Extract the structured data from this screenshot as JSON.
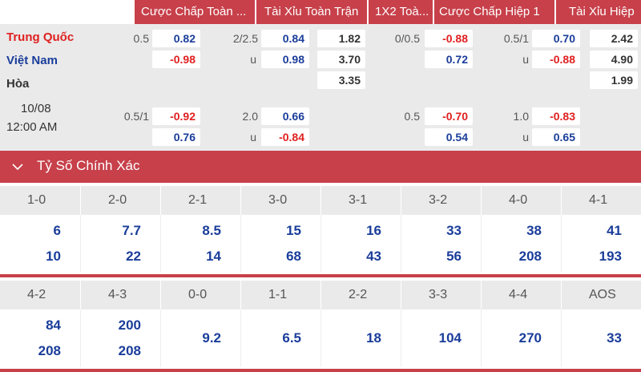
{
  "odds_header": {
    "col1": "Cược Chấp Toàn ...",
    "col2": "Tài Xỉu Toàn Trận",
    "col3": "1X2 Toà...",
    "col4": "Cược Chấp Hiệp 1",
    "col5": "Tài Xỉu Hiệp"
  },
  "teams": {
    "home": "Trung Quốc",
    "away": "Việt Nam",
    "draw": "Hòa"
  },
  "match_time": {
    "date": "10/08",
    "time": "12:00 AM"
  },
  "row1": {
    "hdp_line": "0.5",
    "hdp_home": "0.82",
    "hdp_away": "-0.98",
    "ou_line": "2/2.5",
    "ou_over": "0.84",
    "ou_under_label": "u",
    "ou_under": "0.98",
    "x12_home": "1.82",
    "x12_away": "3.70",
    "x12_draw": "3.35",
    "h1_hdp_line": "0/0.5",
    "h1_hdp_home": "-0.88",
    "h1_hdp_away": "0.72",
    "h1_ou_line": "0.5/1",
    "h1_ou_over": "0.70",
    "h1_ou_under_label": "u",
    "h1_ou_under": "-0.88",
    "h1_x12_home": "2.42",
    "h1_x12_away": "4.90",
    "h1_x12_draw": "1.99"
  },
  "row2": {
    "hdp_line": "0.5/1",
    "hdp_home": "-0.92",
    "hdp_away": "0.76",
    "ou_line": "2.0",
    "ou_over": "0.66",
    "ou_under_label": "u",
    "ou_under": "-0.84",
    "h1_hdp_line": "0.5",
    "h1_hdp_home": "-0.70",
    "h1_hdp_away": "0.54",
    "h1_ou_line": "1.0",
    "h1_ou_over": "-0.83",
    "h1_ou_under_label": "u",
    "h1_ou_under": "0.65"
  },
  "correct_score": {
    "title": "Tỷ Số Chính Xác",
    "group1": [
      {
        "score": "1-0",
        "home": "6",
        "away": "10"
      },
      {
        "score": "2-0",
        "home": "7.7",
        "away": "22"
      },
      {
        "score": "2-1",
        "home": "8.5",
        "away": "14"
      },
      {
        "score": "3-0",
        "home": "15",
        "away": "68"
      },
      {
        "score": "3-1",
        "home": "16",
        "away": "43"
      },
      {
        "score": "3-2",
        "home": "33",
        "away": "56"
      },
      {
        "score": "4-0",
        "home": "38",
        "away": "208"
      },
      {
        "score": "4-1",
        "home": "41",
        "away": "193"
      }
    ],
    "group2": [
      {
        "score": "4-2",
        "home": "84",
        "away": "208"
      },
      {
        "score": "4-3",
        "home": "200",
        "away": "208"
      },
      {
        "score": "0-0",
        "single": "9.2"
      },
      {
        "score": "1-1",
        "single": "6.5"
      },
      {
        "score": "2-2",
        "single": "18"
      },
      {
        "score": "3-3",
        "single": "104"
      },
      {
        "score": "4-4",
        "single": "270"
      },
      {
        "score": "AOS",
        "single": "33"
      }
    ]
  },
  "colors": {
    "accent": "#c7404a",
    "home_red": "#e02020",
    "odds_blue": "#1a3d9a",
    "panel_grey": "#eaeaea"
  }
}
